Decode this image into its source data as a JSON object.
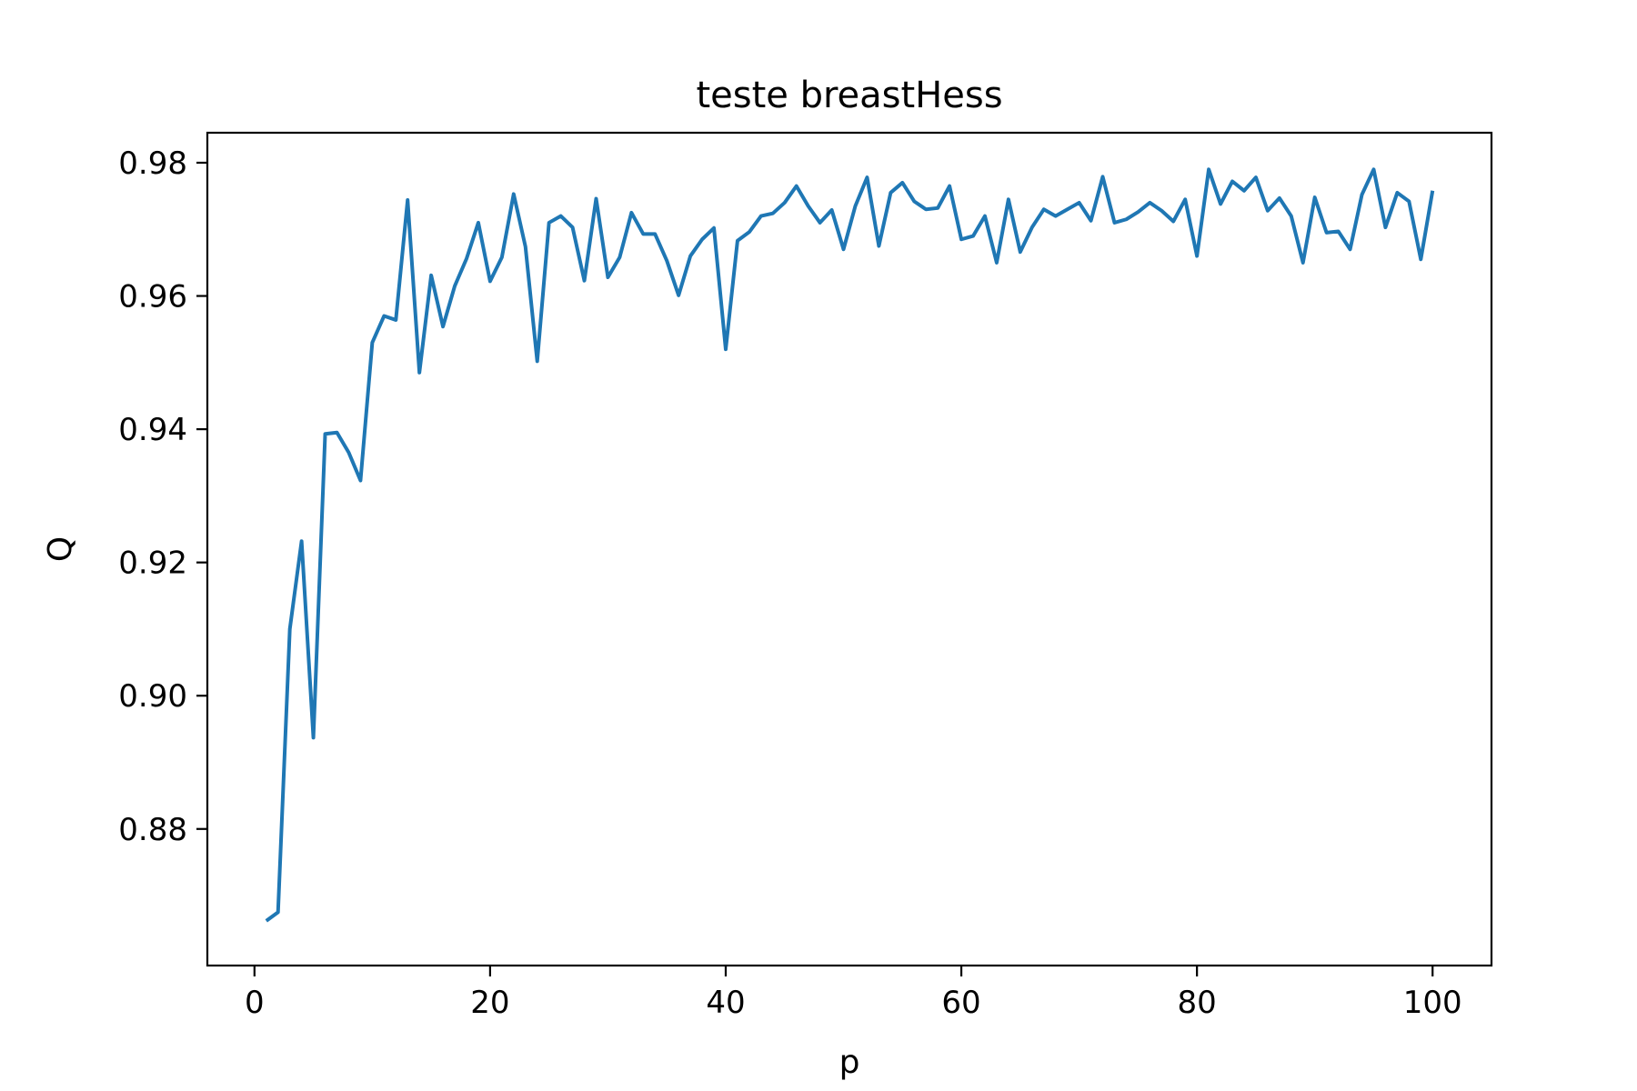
{
  "chart_data": {
    "type": "line",
    "title": "teste breastHess",
    "xlabel": "p",
    "ylabel": "Q",
    "xlim": [
      -4,
      105
    ],
    "ylim": [
      0.8595,
      0.9845
    ],
    "xticks": [
      0,
      20,
      40,
      60,
      80,
      100
    ],
    "xtick_labels": [
      "0",
      "20",
      "40",
      "60",
      "80",
      "100"
    ],
    "yticks": [
      0.88,
      0.9,
      0.92,
      0.94,
      0.96,
      0.98
    ],
    "ytick_labels": [
      "0.88",
      "0.90",
      "0.92",
      "0.94",
      "0.96",
      "0.98"
    ],
    "grid": false,
    "color": "#1f77b4",
    "series": [
      {
        "x": [
          1,
          2,
          3,
          4,
          5,
          6,
          7,
          8,
          9,
          10,
          11,
          12,
          13,
          14,
          15,
          16,
          17,
          18,
          19,
          20,
          21,
          22,
          23,
          24,
          25,
          26,
          27,
          28,
          29,
          30,
          31,
          32,
          33,
          34,
          35,
          36,
          37,
          38,
          39,
          40,
          41,
          42,
          43,
          44,
          45,
          46,
          47,
          48,
          49,
          50,
          51,
          52,
          53,
          54,
          55,
          56,
          57,
          58,
          59,
          60,
          61,
          62,
          63,
          64,
          65,
          66,
          67,
          68,
          69,
          70,
          71,
          72,
          73,
          74,
          75,
          76,
          77,
          78,
          79,
          80,
          81,
          82,
          83,
          84,
          85,
          86,
          87,
          88,
          89,
          90,
          91,
          92,
          93,
          94,
          95,
          96,
          97,
          98,
          99,
          100
        ],
        "values": [
          0.8662,
          0.8675,
          0.91,
          0.9232,
          0.8937,
          0.9393,
          0.9395,
          0.9365,
          0.9323,
          0.953,
          0.957,
          0.9564,
          0.9744,
          0.9485,
          0.9631,
          0.9554,
          0.9615,
          0.9656,
          0.971,
          0.9622,
          0.9658,
          0.9753,
          0.9674,
          0.9502,
          0.971,
          0.972,
          0.9703,
          0.9623,
          0.9746,
          0.9628,
          0.9658,
          0.9725,
          0.9693,
          0.9693,
          0.9653,
          0.9601,
          0.966,
          0.9685,
          0.9702,
          0.952,
          0.9683,
          0.9696,
          0.972,
          0.9724,
          0.974,
          0.9765,
          0.9735,
          0.971,
          0.9729,
          0.967,
          0.9735,
          0.9778,
          0.9675,
          0.9755,
          0.977,
          0.9742,
          0.973,
          0.9732,
          0.9765,
          0.9685,
          0.969,
          0.972,
          0.965,
          0.9745,
          0.9666,
          0.9703,
          0.973,
          0.972,
          0.973,
          0.974,
          0.9713,
          0.9779,
          0.971,
          0.9715,
          0.9726,
          0.974,
          0.9728,
          0.9712,
          0.9745,
          0.966,
          0.979,
          0.9738,
          0.9772,
          0.9758,
          0.9778,
          0.9728,
          0.9747,
          0.972,
          0.965,
          0.9748,
          0.9695,
          0.9697,
          0.967,
          0.9752,
          0.979,
          0.9703,
          0.9755,
          0.9742,
          0.9655,
          0.9758
        ]
      }
    ]
  }
}
